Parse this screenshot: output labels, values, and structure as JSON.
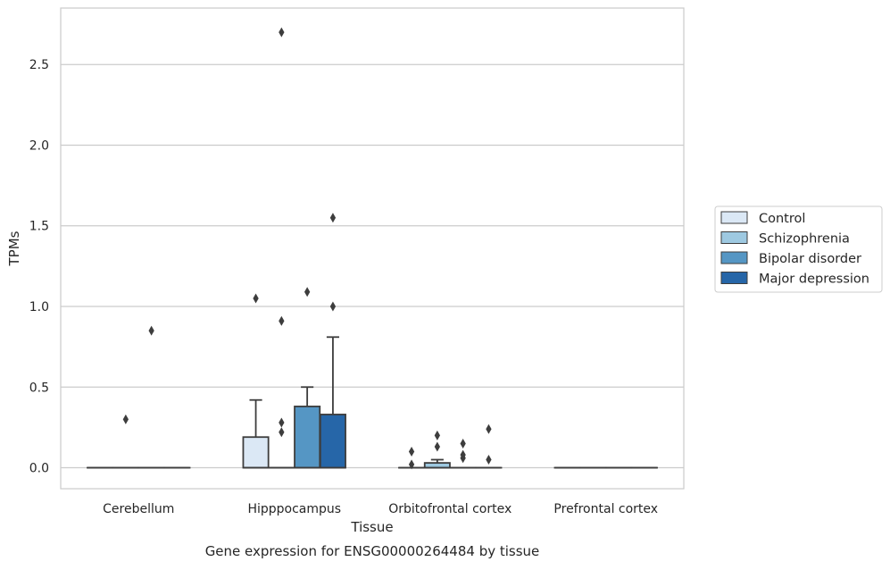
{
  "chart_data": {
    "type": "boxplot",
    "caption": "Gene expression for ENSG00000264484 by tissue",
    "xlabel": "Tissue",
    "ylabel": "TPMs",
    "ylim": [
      -0.13,
      2.85
    ],
    "yticks": [
      0.0,
      0.5,
      1.0,
      1.5,
      2.0,
      2.5
    ],
    "ytick_labels": [
      "0.0",
      "0.5",
      "1.0",
      "1.5",
      "2.0",
      "2.5"
    ],
    "grid": "horizontal",
    "legend_position": "right",
    "categories": [
      "Cerebellum",
      "Hipppocampus",
      "Orbitofrontal cortex",
      "Prefrontal cortex"
    ],
    "series": [
      {
        "name": "Control",
        "color": "#dbe8f5",
        "boxes": [
          {
            "q1": 0,
            "median": 0,
            "q3": 0,
            "whislo": 0,
            "whishi": 0,
            "fliers": []
          },
          {
            "q1": 0,
            "median": 0,
            "q3": 0.19,
            "whislo": 0,
            "whishi": 0.42,
            "fliers": [
              1.05
            ]
          },
          {
            "q1": 0,
            "median": 0,
            "q3": 0,
            "whislo": 0,
            "whishi": 0,
            "fliers": [
              0.02,
              0.1
            ]
          },
          {
            "q1": 0,
            "median": 0,
            "q3": 0,
            "whislo": 0,
            "whishi": 0,
            "fliers": []
          }
        ]
      },
      {
        "name": "Schizophrenia",
        "color": "#9ec9e1",
        "boxes": [
          {
            "q1": 0,
            "median": 0,
            "q3": 0,
            "whislo": 0,
            "whishi": 0,
            "fliers": [
              0.3
            ]
          },
          {
            "q1": 0,
            "median": 0,
            "q3": 0,
            "whislo": 0,
            "whishi": 0,
            "fliers": [
              0.22,
              0.28,
              0.91,
              2.7
            ]
          },
          {
            "q1": 0,
            "median": 0,
            "q3": 0.03,
            "whislo": 0,
            "whishi": 0.05,
            "fliers": [
              0.13,
              0.2
            ]
          },
          {
            "q1": 0,
            "median": 0,
            "q3": 0,
            "whislo": 0,
            "whishi": 0,
            "fliers": []
          }
        ]
      },
      {
        "name": "Bipolar disorder",
        "color": "#5596c4",
        "boxes": [
          {
            "q1": 0,
            "median": 0,
            "q3": 0,
            "whislo": 0,
            "whishi": 0,
            "fliers": [
              0.85
            ]
          },
          {
            "q1": 0,
            "median": 0,
            "q3": 0.38,
            "whislo": 0,
            "whishi": 0.5,
            "fliers": [
              1.09
            ]
          },
          {
            "q1": 0,
            "median": 0,
            "q3": 0,
            "whislo": 0,
            "whishi": 0,
            "fliers": [
              0.06,
              0.08,
              0.15
            ]
          },
          {
            "q1": 0,
            "median": 0,
            "q3": 0,
            "whislo": 0,
            "whishi": 0,
            "fliers": []
          }
        ]
      },
      {
        "name": "Major depression",
        "color": "#2666a8",
        "boxes": [
          {
            "q1": 0,
            "median": 0,
            "q3": 0,
            "whislo": 0,
            "whishi": 0,
            "fliers": []
          },
          {
            "q1": 0,
            "median": 0,
            "q3": 0.33,
            "whislo": 0,
            "whishi": 0.81,
            "fliers": [
              1.0,
              1.55
            ]
          },
          {
            "q1": 0,
            "median": 0,
            "q3": 0,
            "whislo": 0,
            "whishi": 0,
            "fliers": [
              0.05,
              0.24
            ]
          },
          {
            "q1": 0,
            "median": 0,
            "q3": 0,
            "whislo": 0,
            "whishi": 0,
            "fliers": []
          }
        ]
      }
    ]
  }
}
